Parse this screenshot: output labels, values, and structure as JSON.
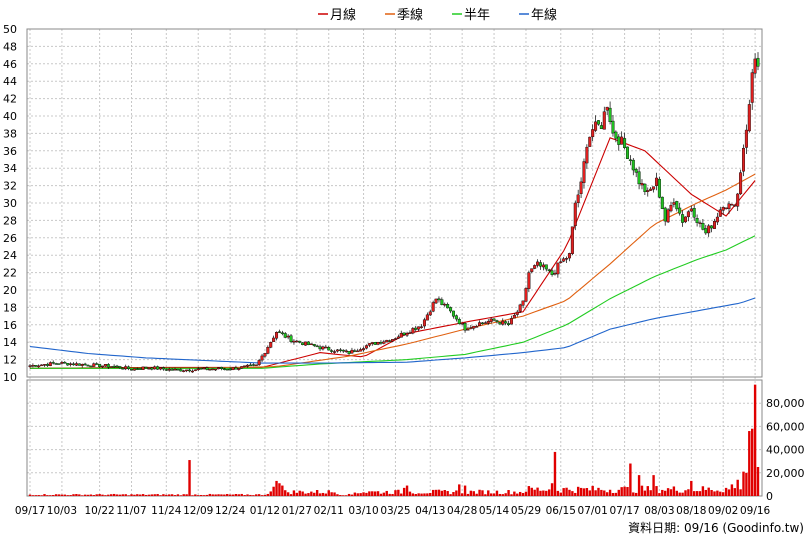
{
  "legend": [
    {
      "label": "月線",
      "color": "#cc0000"
    },
    {
      "label": "季線",
      "color": "#e06010"
    },
    {
      "label": "半年",
      "color": "#22cc22"
    },
    {
      "label": "年線",
      "color": "#2266cc"
    }
  ],
  "footer": "資料日期: 09/16 (Goodinfo.tw)",
  "chart_data": {
    "type": "candlestick",
    "price_axis": {
      "ylim": [
        10,
        50
      ],
      "ticks": [
        10,
        12,
        14,
        16,
        18,
        20,
        22,
        24,
        26,
        28,
        30,
        32,
        34,
        36,
        38,
        40,
        42,
        44,
        46,
        48,
        50
      ]
    },
    "volume_axis": {
      "ylim": [
        0,
        100000
      ],
      "ticks": [
        0,
        20000,
        40000,
        60000,
        80000
      ],
      "tick_labels": [
        "0",
        "20,000",
        "40,000",
        "60,000",
        "80,000"
      ]
    },
    "x_tick_labels": [
      "09/17",
      "10/03",
      "10/22",
      "11/07",
      "11/24",
      "12/09",
      "12/24",
      "01/12",
      "01/27",
      "02/11",
      "03/10",
      "03/25",
      "04/13",
      "04/28",
      "05/14",
      "05/29",
      "06/15",
      "07/01",
      "07/17",
      "08/03",
      "08/18",
      "09/02",
      "09/16"
    ],
    "x_tick_index": [
      0,
      11,
      24,
      35,
      47,
      58,
      69,
      81,
      92,
      103,
      115,
      126,
      138,
      149,
      160,
      171,
      183,
      194,
      205,
      217,
      228,
      239,
      250
    ],
    "n_days": 252,
    "ma_series": [
      {
        "name": "月線",
        "color": "#cc0000",
        "points": [
          [
            0,
            11.0
          ],
          [
            40,
            11.1
          ],
          [
            80,
            11.1
          ],
          [
            100,
            12.8
          ],
          [
            115,
            12.3
          ],
          [
            130,
            15.0
          ],
          [
            150,
            16.3
          ],
          [
            170,
            17.5
          ],
          [
            185,
            25.0
          ],
          [
            200,
            37.5
          ],
          [
            212,
            36.0
          ],
          [
            228,
            31.0
          ],
          [
            240,
            28.5
          ],
          [
            251,
            33.0
          ]
        ]
      },
      {
        "name": "季線",
        "color": "#e06010",
        "points": [
          [
            0,
            11.0
          ],
          [
            60,
            11.0
          ],
          [
            85,
            11.2
          ],
          [
            110,
            12.4
          ],
          [
            130,
            13.8
          ],
          [
            150,
            15.5
          ],
          [
            170,
            17.0
          ],
          [
            185,
            18.8
          ],
          [
            200,
            23.0
          ],
          [
            215,
            27.5
          ],
          [
            230,
            30.0
          ],
          [
            240,
            31.5
          ],
          [
            251,
            33.5
          ]
        ]
      },
      {
        "name": "半年",
        "color": "#22cc22",
        "points": [
          [
            0,
            11.0
          ],
          [
            80,
            11.0
          ],
          [
            100,
            11.5
          ],
          [
            130,
            12.0
          ],
          [
            150,
            12.6
          ],
          [
            170,
            14.0
          ],
          [
            185,
            16.0
          ],
          [
            200,
            19.0
          ],
          [
            215,
            21.5
          ],
          [
            230,
            23.5
          ],
          [
            240,
            24.6
          ],
          [
            251,
            26.4
          ]
        ]
      },
      {
        "name": "年線",
        "color": "#2266cc",
        "points": [
          [
            0,
            13.5
          ],
          [
            20,
            12.7
          ],
          [
            40,
            12.2
          ],
          [
            60,
            11.9
          ],
          [
            80,
            11.6
          ],
          [
            100,
            11.6
          ],
          [
            130,
            11.7
          ],
          [
            150,
            12.2
          ],
          [
            170,
            12.8
          ],
          [
            185,
            13.4
          ],
          [
            200,
            15.5
          ],
          [
            215,
            16.7
          ],
          [
            230,
            17.6
          ],
          [
            245,
            18.5
          ],
          [
            251,
            19.2
          ]
        ]
      }
    ],
    "price_path": [
      [
        0,
        11.3
      ],
      [
        10,
        11.6
      ],
      [
        20,
        11.4
      ],
      [
        30,
        11.2
      ],
      [
        35,
        10.9
      ],
      [
        40,
        11.1
      ],
      [
        50,
        10.8
      ],
      [
        60,
        10.9
      ],
      [
        70,
        11.0
      ],
      [
        78,
        11.3
      ],
      [
        82,
        13.5
      ],
      [
        85,
        15.2
      ],
      [
        90,
        14.3
      ],
      [
        95,
        13.8
      ],
      [
        100,
        13.4
      ],
      [
        103,
        13.2
      ],
      [
        110,
        12.8
      ],
      [
        115,
        13.5
      ],
      [
        120,
        14.0
      ],
      [
        125,
        14.4
      ],
      [
        130,
        15.2
      ],
      [
        135,
        16.0
      ],
      [
        140,
        19.0
      ],
      [
        145,
        17.5
      ],
      [
        150,
        15.6
      ],
      [
        155,
        16.2
      ],
      [
        160,
        16.5
      ],
      [
        165,
        16.0
      ],
      [
        170,
        18.5
      ],
      [
        172,
        22.0
      ],
      [
        175,
        22.9
      ],
      [
        178,
        22.3
      ],
      [
        180,
        21.8
      ],
      [
        183,
        23.2
      ],
      [
        186,
        24.0
      ],
      [
        188,
        30.0
      ],
      [
        190,
        32.0
      ],
      [
        192,
        37.0
      ],
      [
        194,
        38.5
      ],
      [
        197,
        39.0
      ],
      [
        199,
        41.5
      ],
      [
        201,
        38.0
      ],
      [
        204,
        37.0
      ],
      [
        207,
        35.0
      ],
      [
        210,
        32.5
      ],
      [
        213,
        31.0
      ],
      [
        216,
        32.5
      ],
      [
        219,
        28.0
      ],
      [
        222,
        30.5
      ],
      [
        225,
        28.0
      ],
      [
        228,
        29.5
      ],
      [
        231,
        27.5
      ],
      [
        233,
        26.5
      ],
      [
        236,
        28.0
      ],
      [
        239,
        30.0
      ],
      [
        242,
        29.5
      ],
      [
        244,
        31.0
      ],
      [
        246,
        36.5
      ],
      [
        248,
        41.0
      ],
      [
        249,
        45.0
      ],
      [
        250,
        47.0
      ],
      [
        251,
        45.5
      ]
    ],
    "volume_spikes": [
      [
        55,
        31000
      ],
      [
        84,
        8000
      ],
      [
        85,
        13000
      ],
      [
        86,
        11000
      ],
      [
        87,
        9000
      ],
      [
        117,
        4000
      ],
      [
        129,
        7000
      ],
      [
        130,
        9000
      ],
      [
        148,
        10000
      ],
      [
        150,
        9000
      ],
      [
        180,
        11000
      ],
      [
        181,
        38000
      ],
      [
        207,
        28000
      ],
      [
        210,
        18000
      ],
      [
        215,
        18000
      ],
      [
        228,
        13000
      ],
      [
        240,
        7000
      ],
      [
        242,
        10000
      ],
      [
        244,
        14000
      ],
      [
        246,
        21000
      ],
      [
        247,
        20000
      ],
      [
        248,
        56000
      ],
      [
        249,
        58000
      ],
      [
        250,
        96000
      ],
      [
        251,
        25000
      ]
    ]
  }
}
